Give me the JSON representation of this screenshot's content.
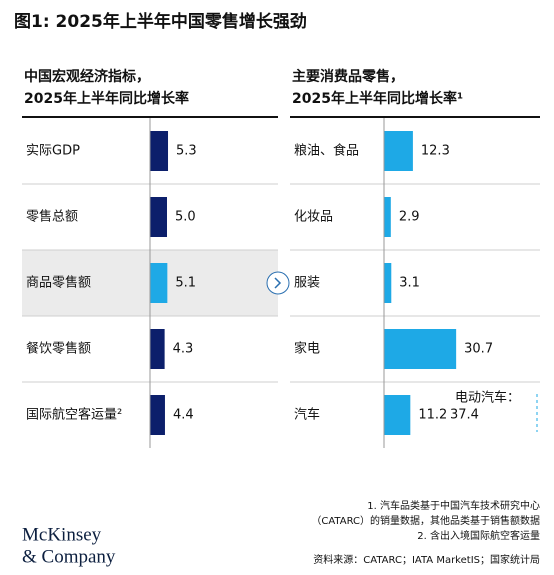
{
  "title": "图1: 2025年上半年中国零售增长强劲",
  "chart_data": [
    {
      "type": "bar",
      "orientation": "horizontal",
      "title": [
        "中国宏观经济指标，",
        "2025年上半年同比增长率"
      ],
      "categories": [
        "实际GDP",
        "零售总额",
        "商品零售额",
        "餐饮零售额",
        "国际航空客运量²"
      ],
      "values": [
        5.3,
        5.0,
        5.1,
        4.3,
        4.4
      ],
      "value_labels": [
        "5.3",
        "5.0",
        "5.1",
        "4.3",
        "4.4"
      ],
      "colors": [
        "#0c1f6b",
        "#0c1f6b",
        "#1ea9e6",
        "#0c1f6b",
        "#0c1f6b"
      ],
      "highlight": 2
    },
    {
      "type": "bar",
      "orientation": "horizontal",
      "title": [
        "主要消费品零售，",
        "2025年上半年同比增长率¹"
      ],
      "categories": [
        "粮油、食品",
        "化妆品",
        "服装",
        "家电",
        "汽车"
      ],
      "values": [
        12.3,
        2.9,
        3.1,
        30.7,
        11.2
      ],
      "colors": [
        "#1ea9e6",
        "#1ea9e6",
        "#1ea9e6",
        "#1ea9e6",
        "#1ea9e6"
      ],
      "annotations": [
        {
          "text": "电动汽车：",
          "value": 37.4
        }
      ]
    }
  ],
  "footnotes": [
    "1.  汽车品类基于中国汽车技术研究中心",
    "（CATARC）的销量数据，其他品类基于销售额数据",
    "2.  含出入境国际航空客运量"
  ],
  "source": "资料来源：CATARC；IATA MarketIS；国家统计局",
  "logo": [
    "McKinsey",
    "& Company"
  ]
}
